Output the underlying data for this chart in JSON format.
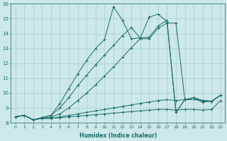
{
  "xlabel": "Humidex (Indice chaleur)",
  "bg_color": "#cce8e8",
  "line_color": "#1a6b6b",
  "grid_color": "#aacccc",
  "xlim": [
    -0.5,
    23.5
  ],
  "ylim": [
    8,
    16
  ],
  "xticks": [
    0,
    1,
    2,
    3,
    4,
    5,
    6,
    7,
    8,
    9,
    10,
    11,
    12,
    13,
    14,
    15,
    16,
    17,
    18,
    19,
    20,
    21,
    22,
    23
  ],
  "yticks": [
    8,
    9,
    10,
    11,
    12,
    13,
    14,
    15,
    16
  ],
  "line1_x": [
    0,
    1,
    2,
    3,
    4,
    5,
    6,
    7,
    8,
    9,
    10,
    11,
    12,
    13,
    14,
    15,
    16,
    17,
    18,
    19,
    20,
    21,
    22,
    23
  ],
  "line1_y": [
    8.4,
    8.5,
    8.2,
    8.3,
    8.3,
    8.35,
    8.4,
    8.45,
    8.5,
    8.55,
    8.6,
    8.65,
    8.7,
    8.75,
    8.8,
    8.85,
    8.9,
    8.9,
    8.85,
    8.9,
    8.9,
    8.85,
    8.9,
    9.5
  ],
  "line2_x": [
    0,
    1,
    2,
    3,
    4,
    5,
    6,
    7,
    8,
    9,
    10,
    11,
    12,
    13,
    14,
    15,
    16,
    17,
    18,
    19,
    20,
    21,
    22,
    23
  ],
  "line2_y": [
    8.4,
    8.5,
    8.2,
    8.3,
    8.3,
    8.4,
    8.5,
    8.6,
    8.7,
    8.8,
    8.9,
    9.0,
    9.1,
    9.2,
    9.3,
    9.4,
    9.5,
    9.55,
    9.5,
    9.55,
    9.6,
    9.4,
    9.45,
    9.85
  ],
  "line3_x": [
    0,
    1,
    2,
    3,
    4,
    5,
    6,
    7,
    8,
    9,
    10,
    11,
    12,
    13,
    14,
    15,
    16,
    17,
    18,
    19,
    20,
    21,
    22,
    23
  ],
  "line3_y": [
    8.4,
    8.5,
    8.2,
    8.3,
    8.4,
    8.6,
    9.0,
    9.5,
    10.0,
    10.55,
    11.15,
    11.75,
    12.4,
    13.05,
    13.65,
    13.65,
    14.35,
    14.7,
    14.7,
    9.55,
    9.6,
    9.5,
    9.45,
    9.85
  ],
  "line4_x": [
    0,
    1,
    2,
    3,
    4,
    5,
    6,
    7,
    8,
    9,
    10,
    11,
    12,
    13,
    14,
    15,
    16,
    17,
    18,
    19,
    20,
    21,
    22,
    23
  ],
  "line4_y": [
    8.4,
    8.5,
    8.2,
    8.35,
    8.5,
    9.0,
    9.7,
    10.5,
    11.2,
    11.9,
    12.55,
    13.2,
    13.85,
    14.4,
    13.7,
    13.75,
    14.5,
    14.9,
    8.7,
    9.55,
    9.6,
    9.5,
    9.45,
    9.85
  ],
  "line5_x": [
    0,
    1,
    2,
    3,
    4,
    5,
    6,
    7,
    8,
    9,
    10,
    11,
    12,
    13,
    14,
    15,
    16,
    17,
    18,
    19,
    20,
    21,
    22,
    23
  ],
  "line5_y": [
    8.4,
    8.5,
    8.2,
    8.35,
    8.5,
    9.3,
    10.3,
    11.3,
    12.2,
    13.0,
    13.6,
    15.8,
    14.9,
    13.65,
    13.7,
    15.1,
    15.3,
    14.8,
    8.7,
    9.55,
    9.7,
    9.5,
    9.45,
    9.85
  ]
}
